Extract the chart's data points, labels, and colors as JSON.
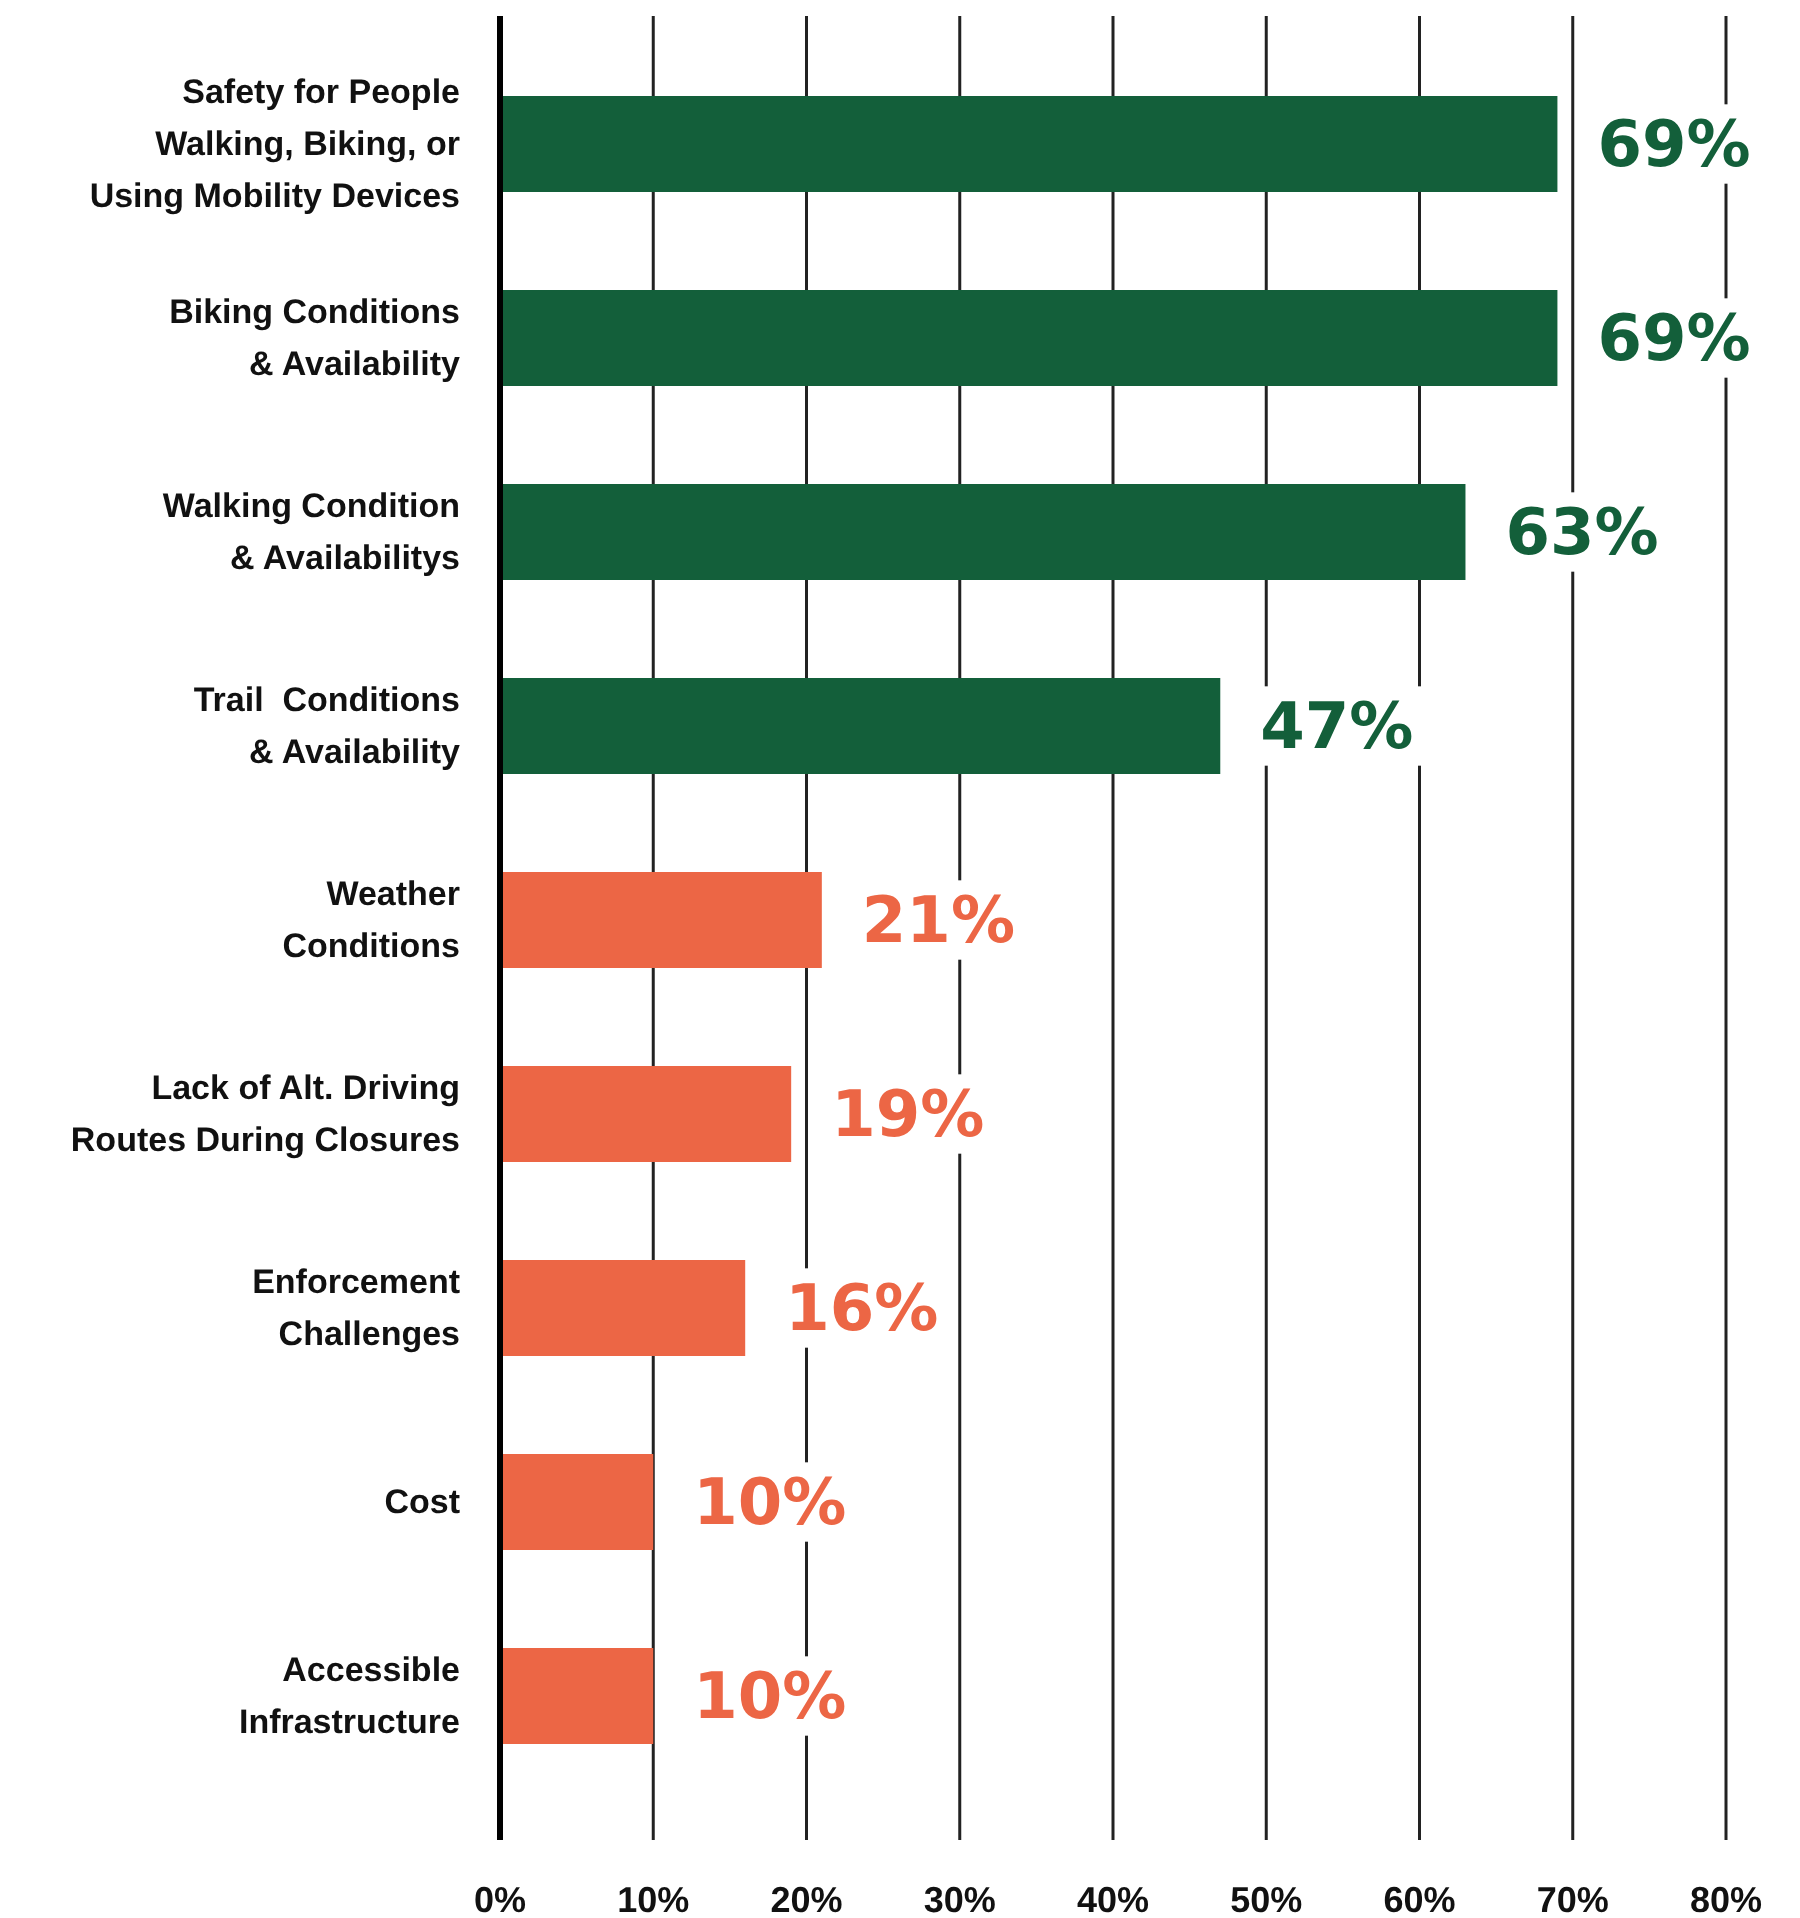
{
  "chart_data": {
    "type": "bar",
    "orientation": "horizontal",
    "categories": [
      "Safety for People\nWalking, Biking, or\nUsing Mobility Devices",
      "Biking Conditions\n& Availability",
      "Walking Condition\n& Availabilitys",
      "Trail  Conditions\n& Availability",
      "Weather\nConditions",
      "Lack of Alt. Driving\nRoutes During Closures",
      "Enforcement\nChallenges",
      "Cost",
      "Accessible\nInfrastructure"
    ],
    "values": [
      69,
      69,
      63,
      47,
      21,
      19,
      16,
      10,
      10
    ],
    "colors": [
      "#135f3a",
      "#135f3a",
      "#135f3a",
      "#135f3a",
      "#ec6645",
      "#ec6645",
      "#ec6645",
      "#ec6645",
      "#ec6645"
    ],
    "value_labels": [
      "69%",
      "69%",
      "63%",
      "47%",
      "21%",
      "19%",
      "16%",
      "10%",
      "10%"
    ],
    "xlim": [
      0,
      80
    ],
    "xticks": [
      {
        "value": 0,
        "label": "0%"
      },
      {
        "value": 10,
        "label": "10%"
      },
      {
        "value": 20,
        "label": "20%"
      },
      {
        "value": 30,
        "label": "30%"
      },
      {
        "value": 40,
        "label": "40%"
      },
      {
        "value": 50,
        "label": "50%"
      },
      {
        "value": 60,
        "label": "60%"
      },
      {
        "value": 70,
        "label": "70%"
      },
      {
        "value": 80,
        "label": "80%"
      }
    ],
    "grid": "x"
  }
}
